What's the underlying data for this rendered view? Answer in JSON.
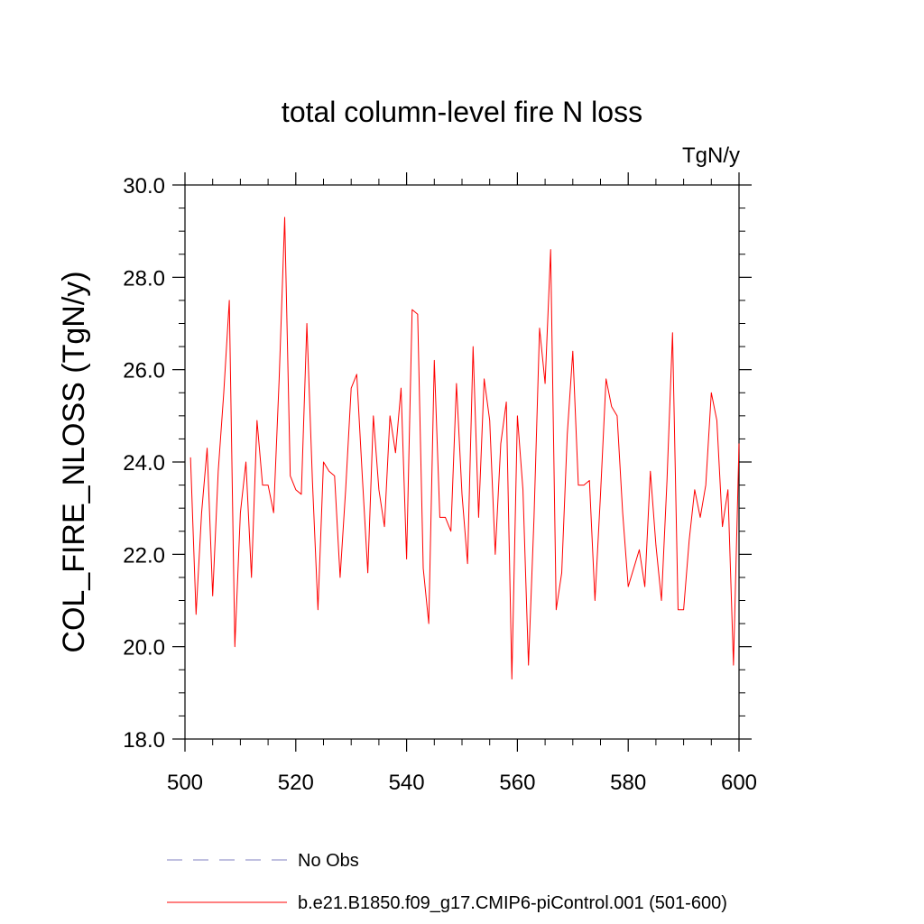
{
  "chart_data": {
    "type": "line",
    "title": "total column-level fire N loss",
    "units_label": "TgN/y",
    "xlabel": "",
    "ylabel": "COL_FIRE_NLOSS  (TgN/y)",
    "xlim": [
      500,
      600
    ],
    "ylim": [
      18.0,
      30.0
    ],
    "x_ticks": [
      500,
      520,
      540,
      560,
      580,
      600
    ],
    "x_tick_labels": [
      "500",
      "520",
      "540",
      "560",
      "580",
      "600"
    ],
    "y_ticks": [
      18.0,
      20.0,
      22.0,
      24.0,
      26.0,
      28.0,
      30.0
    ],
    "y_tick_labels": [
      "18.0",
      "20.0",
      "22.0",
      "24.0",
      "26.0",
      "28.0",
      "30.0"
    ],
    "legend_position": "bottom",
    "series": [
      {
        "name": "b.e21.B1850.f09_g17.CMIP6-piControl.001 (501-600)",
        "color": "#ff0000",
        "style": "solid",
        "x": [
          501,
          502,
          503,
          504,
          505,
          506,
          507,
          508,
          509,
          510,
          511,
          512,
          513,
          514,
          515,
          516,
          517,
          518,
          519,
          520,
          521,
          522,
          523,
          524,
          525,
          526,
          527,
          528,
          529,
          530,
          531,
          532,
          533,
          534,
          535,
          536,
          537,
          538,
          539,
          540,
          541,
          542,
          543,
          544,
          545,
          546,
          547,
          548,
          549,
          550,
          551,
          552,
          553,
          554,
          555,
          556,
          557,
          558,
          559,
          560,
          561,
          562,
          563,
          564,
          565,
          566,
          567,
          568,
          569,
          570,
          571,
          572,
          573,
          574,
          575,
          576,
          577,
          578,
          579,
          580,
          581,
          582,
          583,
          584,
          585,
          586,
          587,
          588,
          589,
          590,
          591,
          592,
          593,
          594,
          595,
          596,
          597,
          598,
          599,
          600
        ],
        "values": [
          24.1,
          20.7,
          22.9,
          24.3,
          21.1,
          23.8,
          25.5,
          27.5,
          20.0,
          22.9,
          24.0,
          21.5,
          24.9,
          23.5,
          23.5,
          22.9,
          25.8,
          29.3,
          23.7,
          23.4,
          23.3,
          27.0,
          23.6,
          20.8,
          24.0,
          23.8,
          23.7,
          21.5,
          23.4,
          25.6,
          25.9,
          23.7,
          21.6,
          25.0,
          23.4,
          22.6,
          25.0,
          24.2,
          25.6,
          21.9,
          27.3,
          27.2,
          21.7,
          20.5,
          26.2,
          22.8,
          22.8,
          22.5,
          25.7,
          23.3,
          21.8,
          26.5,
          22.8,
          25.8,
          24.9,
          22.0,
          24.4,
          25.3,
          19.3,
          25.0,
          23.4,
          19.6,
          22.8,
          26.9,
          25.7,
          28.6,
          20.8,
          21.6,
          24.6,
          26.4,
          23.5,
          23.5,
          23.6,
          21.0,
          23.3,
          25.8,
          25.2,
          25.0,
          22.9,
          21.3,
          21.7,
          22.1,
          21.3,
          23.8,
          22.2,
          21.0,
          23.6,
          26.8,
          20.8,
          20.8,
          22.3,
          23.4,
          22.8,
          23.5,
          25.5,
          24.9,
          22.6,
          23.4,
          19.6,
          24.4
        ]
      }
    ],
    "legend": [
      {
        "label": "No Obs",
        "color": "#8080c0",
        "style": "dashed"
      },
      {
        "label": "b.e21.B1850.f09_g17.CMIP6-piControl.001 (501-600)",
        "color": "#ff0000",
        "style": "solid"
      }
    ]
  }
}
